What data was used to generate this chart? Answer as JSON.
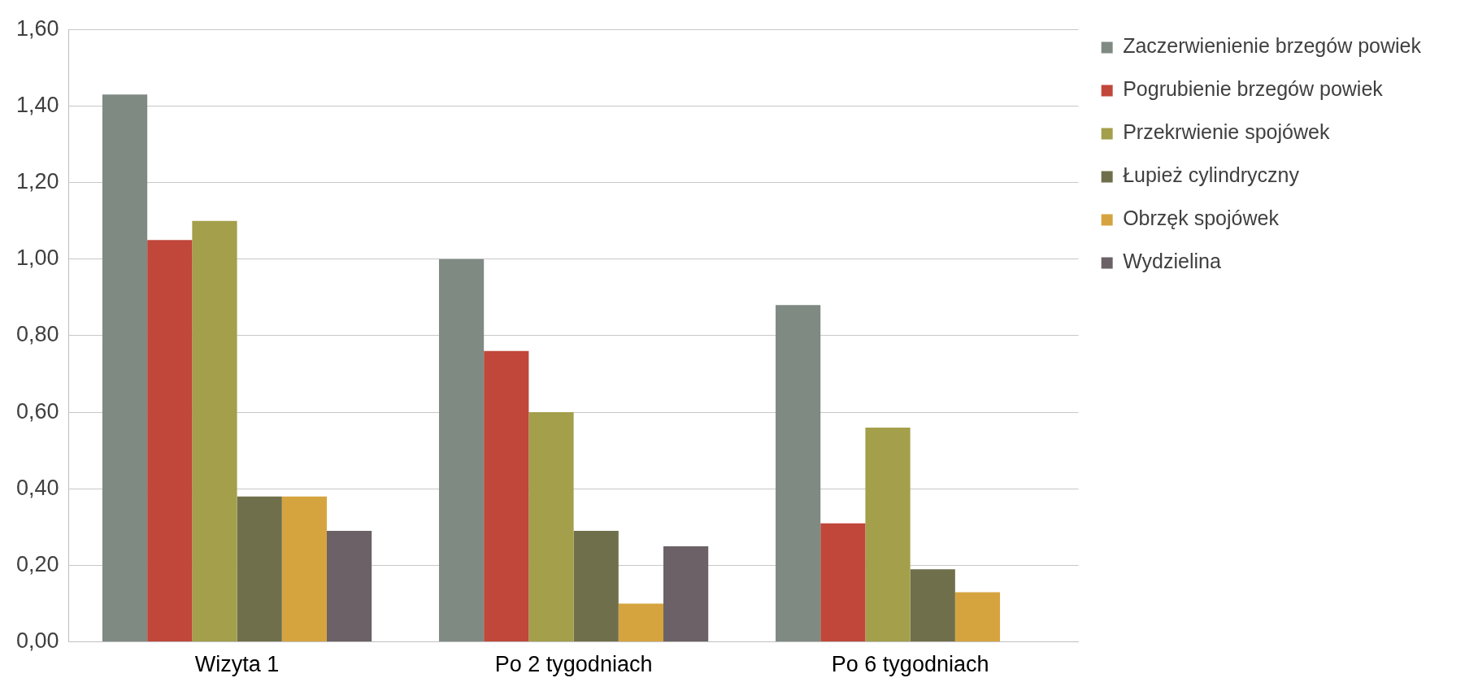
{
  "chart_data": {
    "type": "bar",
    "categories": [
      "Wizyta 1",
      "Po 2 tygodniach",
      "Po 6 tygodniach"
    ],
    "series": [
      {
        "name": "Zaczerwienienie brzegów powiek",
        "color": "#7f8a83",
        "values": [
          1.43,
          1.0,
          0.88
        ]
      },
      {
        "name": "Pogrubienie brzegów powiek",
        "color": "#c0473a",
        "values": [
          1.05,
          0.76,
          0.31
        ]
      },
      {
        "name": "Przekrwienie spojówek",
        "color": "#a39f4b",
        "values": [
          1.1,
          0.6,
          0.56
        ]
      },
      {
        "name": "Łupież cylindryczny",
        "color": "#6f6f4b",
        "values": [
          0.38,
          0.29,
          0.19
        ]
      },
      {
        "name": "Obrzęk spojówek",
        "color": "#d6a43f",
        "values": [
          0.38,
          0.1,
          0.13
        ]
      },
      {
        "name": "Wydzielina",
        "color": "#6b6166",
        "values": [
          0.29,
          0.25,
          0
        ]
      }
    ],
    "ylim": [
      0,
      1.6
    ],
    "yticks": [
      {
        "value": 0,
        "label": "0,00"
      },
      {
        "value": 0.2,
        "label": "0,20"
      },
      {
        "value": 0.4,
        "label": "0,40"
      },
      {
        "value": 0.6,
        "label": "0,60"
      },
      {
        "value": 0.8,
        "label": "0,80"
      },
      {
        "value": 1.0,
        "label": "1,00"
      },
      {
        "value": 1.2,
        "label": "1,20"
      },
      {
        "value": 1.4,
        "label": "1,40"
      },
      {
        "value": 1.6,
        "label": "1,60"
      }
    ],
    "grid": "y",
    "legend": "top right"
  }
}
